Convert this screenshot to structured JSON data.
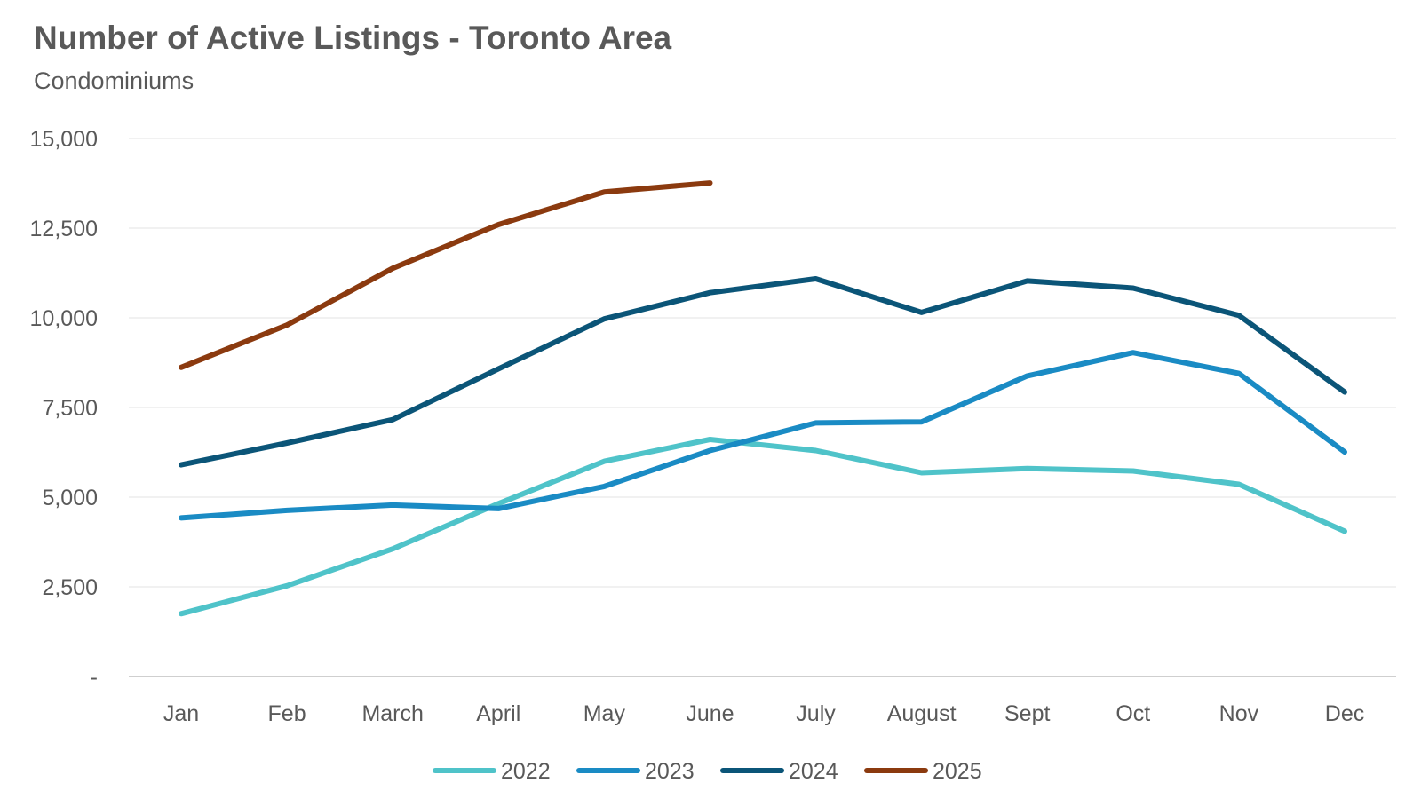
{
  "title": "Number of Active Listings - Toronto Area",
  "subtitle": "Condominiums",
  "chart_data": {
    "type": "line",
    "title": "Number of Active Listings - Toronto Area",
    "subtitle": "Condominiums",
    "xlabel": "",
    "ylabel": "",
    "categories": [
      "Jan",
      "Feb",
      "March",
      "April",
      "May",
      "June",
      "July",
      "August",
      "Sept",
      "Oct",
      "Nov",
      "Dec"
    ],
    "ylim": [
      0,
      15000
    ],
    "yticks": [
      0,
      2500,
      5000,
      7500,
      10000,
      12500,
      15000
    ],
    "ytick_labels": [
      "-",
      "2,500",
      "5,000",
      "7,500",
      "10,000",
      "12,500",
      "15,000"
    ],
    "grid": "horizontal",
    "legend": "bottom",
    "series": [
      {
        "name": "2022",
        "color": "#4fc3c9",
        "values": [
          1750,
          2530,
          3560,
          4820,
          6000,
          6610,
          6300,
          5680,
          5800,
          5730,
          5360,
          4050
        ]
      },
      {
        "name": "2023",
        "color": "#1a8bc4",
        "values": [
          4420,
          4630,
          4780,
          4680,
          5300,
          6300,
          7070,
          7100,
          8380,
          9030,
          8450,
          6260
        ]
      },
      {
        "name": "2024",
        "color": "#0b5578",
        "values": [
          5900,
          6510,
          7160,
          8580,
          9970,
          10700,
          11090,
          10150,
          11030,
          10830,
          10070,
          7930
        ]
      },
      {
        "name": "2025",
        "color": "#8b3a0f",
        "values": [
          8620,
          9800,
          11380,
          12600,
          13510,
          13760,
          null,
          null,
          null,
          null,
          null,
          null
        ]
      }
    ]
  }
}
